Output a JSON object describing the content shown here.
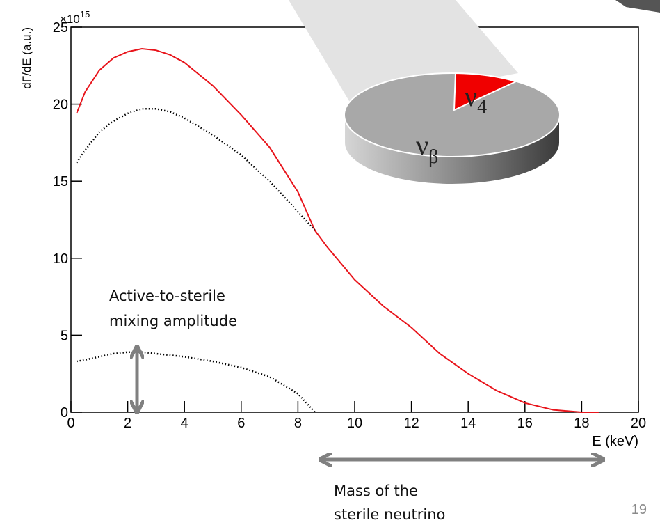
{
  "chart_data": {
    "type": "line",
    "ylabel": "dΓ/dE (a.u.)",
    "y_multiplier": {
      "base": "×10",
      "exponent": "15"
    },
    "xlabel": "E (keV)",
    "x": [
      0.2,
      0.5,
      1,
      1.5,
      2,
      2.5,
      3,
      3.5,
      4,
      5,
      6,
      7,
      8,
      8.6,
      9,
      10,
      11,
      12,
      13,
      14,
      15,
      16,
      17,
      18,
      18.6
    ],
    "series": [
      {
        "color": "#e8141b",
        "style": "solid",
        "values": [
          19.4,
          20.8,
          22.2,
          23.0,
          23.4,
          23.6,
          23.5,
          23.2,
          22.7,
          21.2,
          19.3,
          17.2,
          14.3,
          11.8,
          10.8,
          8.6,
          6.9,
          5.5,
          3.8,
          2.5,
          1.4,
          0.6,
          0.15,
          0,
          0
        ]
      },
      {
        "color": "#000000",
        "style": "dotted",
        "values": [
          16.2,
          17.0,
          18.2,
          18.9,
          19.4,
          19.7,
          19.7,
          19.5,
          19.1,
          18.0,
          16.7,
          15.0,
          13.0,
          11.8,
          null,
          null,
          null,
          null,
          null,
          null,
          null,
          null,
          null,
          null,
          null
        ]
      },
      {
        "color": "#000000",
        "style": "dotted",
        "values": [
          3.3,
          3.4,
          3.6,
          3.8,
          3.9,
          3.9,
          3.8,
          3.7,
          3.6,
          3.3,
          2.9,
          2.3,
          1.2,
          0,
          null,
          null,
          null,
          null,
          null,
          null,
          null,
          null,
          null,
          null,
          null
        ]
      }
    ],
    "xlim": [
      0,
      20
    ],
    "xticks": [
      0,
      2,
      4,
      6,
      8,
      10,
      12,
      14,
      16,
      18,
      20
    ],
    "ylim": [
      0,
      25
    ],
    "yticks": [
      0,
      5,
      10,
      15,
      20,
      25
    ],
    "annotations": [
      {
        "lines": [
          "Active-to-sterile",
          "mixing amplitude"
        ]
      },
      {
        "lines": [
          "Mass of the",
          "sterile neutrino"
        ]
      }
    ],
    "pie_labels": [
      {
        "symbol": "ν",
        "subscript": "4"
      },
      {
        "symbol": "ν",
        "subscript": "β"
      }
    ]
  },
  "page_number": "19"
}
